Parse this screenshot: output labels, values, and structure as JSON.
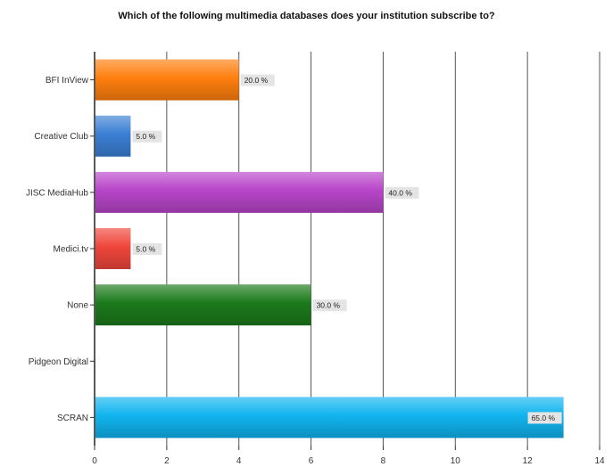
{
  "chart_data": {
    "type": "bar",
    "orientation": "horizontal",
    "title": "Which of the following multimedia databases does your institution subscribe to?",
    "xlabel": "",
    "ylabel": "",
    "xlim": [
      0,
      14
    ],
    "x_ticks": [
      0,
      2,
      4,
      6,
      8,
      10,
      12,
      14
    ],
    "grid": true,
    "categories": [
      "BFI InView",
      "Creative Club",
      "JISC MediaHub",
      "Medici.tv",
      "None",
      "Pidgeon Digital",
      "SCRAN"
    ],
    "values": [
      4,
      1,
      8,
      1,
      6,
      0,
      13
    ],
    "data_labels": [
      "20.0 %",
      "5.0 %",
      "40.0 %",
      "5.0 %",
      "30.0 %",
      "",
      "65.0 %"
    ],
    "colors": [
      "#ff7f0e",
      "#3b7fd4",
      "#b845c9",
      "#f0463c",
      "#1b7a1b",
      "#ffffff",
      "#11b4ef"
    ]
  }
}
